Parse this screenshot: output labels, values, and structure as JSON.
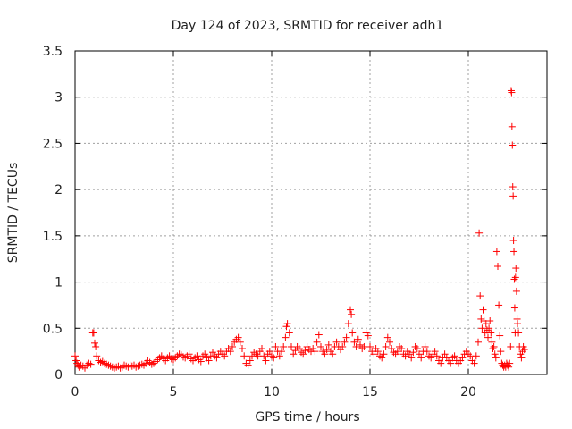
{
  "chart_data": {
    "type": "scatter",
    "title": "Day 124 of 2023, SRMTID for receiver adh1",
    "xlabel": "GPS time / hours",
    "ylabel": "SRMTID / TECUs",
    "xlim": [
      0,
      24
    ],
    "ylim": [
      0,
      3.5
    ],
    "xticks": [
      0,
      5,
      10,
      15,
      20
    ],
    "yticks": [
      0,
      0.5,
      1,
      1.5,
      2,
      2.5,
      3,
      3.5
    ],
    "grid": true,
    "marker": "+",
    "marker_color": "#ff0000",
    "series": [
      {
        "name": "SRMTID",
        "points": [
          [
            0.0,
            0.2
          ],
          [
            0.05,
            0.15
          ],
          [
            0.1,
            0.12
          ],
          [
            0.15,
            0.1
          ],
          [
            0.2,
            0.08
          ],
          [
            0.3,
            0.1
          ],
          [
            0.4,
            0.09
          ],
          [
            0.5,
            0.07
          ],
          [
            0.6,
            0.1
          ],
          [
            0.7,
            0.12
          ],
          [
            0.8,
            0.11
          ],
          [
            0.9,
            0.45
          ],
          [
            0.95,
            0.45
          ],
          [
            1.0,
            0.34
          ],
          [
            1.05,
            0.3
          ],
          [
            1.1,
            0.2
          ],
          [
            1.2,
            0.15
          ],
          [
            1.3,
            0.13
          ],
          [
            1.4,
            0.14
          ],
          [
            1.5,
            0.12
          ],
          [
            1.6,
            0.11
          ],
          [
            1.7,
            0.1
          ],
          [
            1.8,
            0.09
          ],
          [
            1.9,
            0.08
          ],
          [
            2.0,
            0.07
          ],
          [
            2.1,
            0.08
          ],
          [
            2.2,
            0.09
          ],
          [
            2.3,
            0.07
          ],
          [
            2.4,
            0.08
          ],
          [
            2.5,
            0.1
          ],
          [
            2.6,
            0.09
          ],
          [
            2.7,
            0.08
          ],
          [
            2.8,
            0.1
          ],
          [
            2.9,
            0.09
          ],
          [
            3.0,
            0.1
          ],
          [
            3.1,
            0.08
          ],
          [
            3.2,
            0.09
          ],
          [
            3.3,
            0.1
          ],
          [
            3.4,
            0.11
          ],
          [
            3.5,
            0.1
          ],
          [
            3.6,
            0.12
          ],
          [
            3.7,
            0.15
          ],
          [
            3.8,
            0.13
          ],
          [
            3.9,
            0.11
          ],
          [
            4.0,
            0.12
          ],
          [
            4.1,
            0.14
          ],
          [
            4.2,
            0.16
          ],
          [
            4.3,
            0.18
          ],
          [
            4.4,
            0.2
          ],
          [
            4.5,
            0.17
          ],
          [
            4.6,
            0.15
          ],
          [
            4.7,
            0.18
          ],
          [
            4.8,
            0.2
          ],
          [
            4.9,
            0.17
          ],
          [
            5.0,
            0.16
          ],
          [
            5.1,
            0.18
          ],
          [
            5.2,
            0.2
          ],
          [
            5.3,
            0.22
          ],
          [
            5.4,
            0.21
          ],
          [
            5.5,
            0.19
          ],
          [
            5.6,
            0.18
          ],
          [
            5.7,
            0.2
          ],
          [
            5.8,
            0.22
          ],
          [
            5.9,
            0.17
          ],
          [
            6.0,
            0.15
          ],
          [
            6.1,
            0.18
          ],
          [
            6.2,
            0.2
          ],
          [
            6.3,
            0.16
          ],
          [
            6.4,
            0.14
          ],
          [
            6.5,
            0.2
          ],
          [
            6.6,
            0.22
          ],
          [
            6.7,
            0.18
          ],
          [
            6.8,
            0.15
          ],
          [
            6.9,
            0.2
          ],
          [
            7.0,
            0.24
          ],
          [
            7.1,
            0.2
          ],
          [
            7.2,
            0.18
          ],
          [
            7.3,
            0.22
          ],
          [
            7.4,
            0.25
          ],
          [
            7.5,
            0.22
          ],
          [
            7.6,
            0.2
          ],
          [
            7.7,
            0.25
          ],
          [
            7.8,
            0.28
          ],
          [
            7.9,
            0.25
          ],
          [
            8.0,
            0.3
          ],
          [
            8.1,
            0.35
          ],
          [
            8.2,
            0.38
          ],
          [
            8.3,
            0.4
          ],
          [
            8.4,
            0.35
          ],
          [
            8.5,
            0.28
          ],
          [
            8.6,
            0.2
          ],
          [
            8.7,
            0.12
          ],
          [
            8.8,
            0.1
          ],
          [
            8.9,
            0.15
          ],
          [
            9.0,
            0.2
          ],
          [
            9.1,
            0.24
          ],
          [
            9.2,
            0.22
          ],
          [
            9.3,
            0.2
          ],
          [
            9.4,
            0.25
          ],
          [
            9.5,
            0.28
          ],
          [
            9.6,
            0.2
          ],
          [
            9.7,
            0.15
          ],
          [
            9.8,
            0.22
          ],
          [
            9.9,
            0.25
          ],
          [
            10.0,
            0.2
          ],
          [
            10.1,
            0.18
          ],
          [
            10.2,
            0.3
          ],
          [
            10.3,
            0.25
          ],
          [
            10.4,
            0.2
          ],
          [
            10.5,
            0.25
          ],
          [
            10.6,
            0.3
          ],
          [
            10.7,
            0.4
          ],
          [
            10.75,
            0.52
          ],
          [
            10.8,
            0.55
          ],
          [
            10.9,
            0.45
          ],
          [
            11.0,
            0.3
          ],
          [
            11.1,
            0.22
          ],
          [
            11.2,
            0.26
          ],
          [
            11.3,
            0.3
          ],
          [
            11.4,
            0.28
          ],
          [
            11.5,
            0.24
          ],
          [
            11.6,
            0.22
          ],
          [
            11.7,
            0.26
          ],
          [
            11.8,
            0.3
          ],
          [
            11.9,
            0.27
          ],
          [
            12.0,
            0.25
          ],
          [
            12.1,
            0.28
          ],
          [
            12.2,
            0.25
          ],
          [
            12.3,
            0.35
          ],
          [
            12.4,
            0.43
          ],
          [
            12.5,
            0.3
          ],
          [
            12.6,
            0.25
          ],
          [
            12.7,
            0.22
          ],
          [
            12.8,
            0.27
          ],
          [
            12.9,
            0.32
          ],
          [
            13.0,
            0.25
          ],
          [
            13.1,
            0.22
          ],
          [
            13.2,
            0.3
          ],
          [
            13.3,
            0.35
          ],
          [
            13.4,
            0.3
          ],
          [
            13.5,
            0.27
          ],
          [
            13.6,
            0.3
          ],
          [
            13.7,
            0.35
          ],
          [
            13.8,
            0.4
          ],
          [
            13.9,
            0.55
          ],
          [
            14.0,
            0.7
          ],
          [
            14.05,
            0.65
          ],
          [
            14.1,
            0.45
          ],
          [
            14.2,
            0.35
          ],
          [
            14.3,
            0.3
          ],
          [
            14.4,
            0.38
          ],
          [
            14.5,
            0.32
          ],
          [
            14.6,
            0.28
          ],
          [
            14.7,
            0.3
          ],
          [
            14.8,
            0.45
          ],
          [
            14.9,
            0.42
          ],
          [
            15.0,
            0.3
          ],
          [
            15.1,
            0.25
          ],
          [
            15.2,
            0.22
          ],
          [
            15.3,
            0.28
          ],
          [
            15.4,
            0.25
          ],
          [
            15.5,
            0.2
          ],
          [
            15.6,
            0.18
          ],
          [
            15.7,
            0.22
          ],
          [
            15.8,
            0.3
          ],
          [
            15.9,
            0.4
          ],
          [
            16.0,
            0.35
          ],
          [
            16.1,
            0.28
          ],
          [
            16.2,
            0.24
          ],
          [
            16.3,
            0.22
          ],
          [
            16.4,
            0.25
          ],
          [
            16.5,
            0.3
          ],
          [
            16.6,
            0.28
          ],
          [
            16.7,
            0.22
          ],
          [
            16.8,
            0.2
          ],
          [
            16.9,
            0.25
          ],
          [
            17.0,
            0.22
          ],
          [
            17.1,
            0.18
          ],
          [
            17.2,
            0.24
          ],
          [
            17.3,
            0.3
          ],
          [
            17.4,
            0.28
          ],
          [
            17.5,
            0.22
          ],
          [
            17.6,
            0.18
          ],
          [
            17.7,
            0.25
          ],
          [
            17.8,
            0.3
          ],
          [
            17.9,
            0.25
          ],
          [
            18.0,
            0.2
          ],
          [
            18.1,
            0.18
          ],
          [
            18.2,
            0.22
          ],
          [
            18.3,
            0.25
          ],
          [
            18.4,
            0.2
          ],
          [
            18.5,
            0.15
          ],
          [
            18.6,
            0.12
          ],
          [
            18.7,
            0.18
          ],
          [
            18.8,
            0.22
          ],
          [
            18.9,
            0.18
          ],
          [
            19.0,
            0.15
          ],
          [
            19.1,
            0.12
          ],
          [
            19.2,
            0.18
          ],
          [
            19.3,
            0.2
          ],
          [
            19.4,
            0.15
          ],
          [
            19.5,
            0.12
          ],
          [
            19.6,
            0.15
          ],
          [
            19.7,
            0.18
          ],
          [
            19.8,
            0.22
          ],
          [
            19.9,
            0.25
          ],
          [
            20.0,
            0.22
          ],
          [
            20.1,
            0.2
          ],
          [
            20.2,
            0.15
          ],
          [
            20.3,
            0.12
          ],
          [
            20.4,
            0.2
          ],
          [
            20.5,
            0.35
          ],
          [
            20.55,
            1.53
          ],
          [
            20.6,
            0.85
          ],
          [
            20.65,
            0.6
          ],
          [
            20.7,
            0.5
          ],
          [
            20.75,
            0.7
          ],
          [
            20.8,
            0.58
          ],
          [
            20.85,
            0.45
          ],
          [
            20.9,
            0.55
          ],
          [
            20.95,
            0.48
          ],
          [
            21.0,
            0.4
          ],
          [
            21.05,
            0.5
          ],
          [
            21.1,
            0.58
          ],
          [
            21.15,
            0.45
          ],
          [
            21.2,
            0.35
          ],
          [
            21.25,
            0.28
          ],
          [
            21.3,
            0.3
          ],
          [
            21.35,
            0.22
          ],
          [
            21.4,
            0.18
          ],
          [
            21.45,
            1.33
          ],
          [
            21.5,
            1.17
          ],
          [
            21.55,
            0.75
          ],
          [
            21.6,
            0.42
          ],
          [
            21.65,
            0.25
          ],
          [
            21.7,
            0.12
          ],
          [
            21.75,
            0.1
          ],
          [
            21.8,
            0.08
          ],
          [
            21.85,
            0.1
          ],
          [
            21.9,
            0.08
          ],
          [
            21.95,
            0.12
          ],
          [
            22.0,
            0.1
          ],
          [
            22.05,
            0.08
          ],
          [
            22.1,
            0.12
          ],
          [
            22.15,
            0.3
          ],
          [
            22.18,
            3.07
          ],
          [
            22.2,
            3.05
          ],
          [
            22.22,
            2.68
          ],
          [
            22.24,
            2.48
          ],
          [
            22.26,
            2.03
          ],
          [
            22.28,
            1.93
          ],
          [
            22.3,
            1.45
          ],
          [
            22.32,
            1.33
          ],
          [
            22.34,
            1.03
          ],
          [
            22.36,
            0.72
          ],
          [
            22.38,
            0.45
          ],
          [
            22.4,
            1.05
          ],
          [
            22.42,
            1.15
          ],
          [
            22.45,
            0.9
          ],
          [
            22.48,
            0.6
          ],
          [
            22.5,
            0.55
          ],
          [
            22.55,
            0.45
          ],
          [
            22.6,
            0.3
          ],
          [
            22.65,
            0.22
          ],
          [
            22.7,
            0.18
          ],
          [
            22.75,
            0.25
          ],
          [
            22.8,
            0.3
          ],
          [
            22.85,
            0.27
          ]
        ]
      }
    ]
  }
}
